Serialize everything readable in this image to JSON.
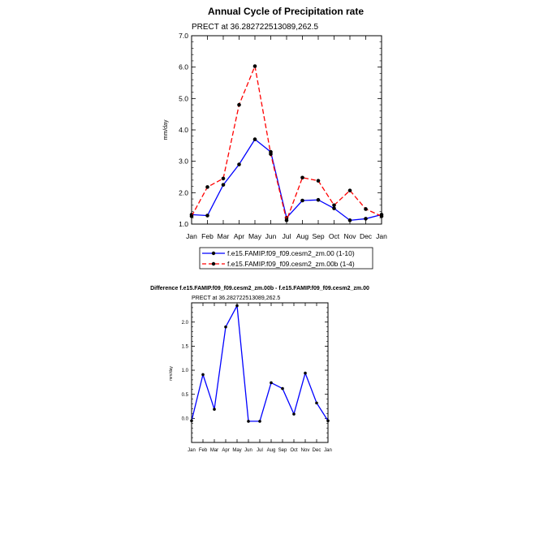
{
  "chart_data": [
    {
      "type": "line",
      "title": "Annual Cycle of Precipitation rate",
      "subtitle": "PRECT at 36.282722513089,262.5",
      "xlabel": "",
      "ylabel": "mm/day",
      "categories": [
        "Jan",
        "Feb",
        "Mar",
        "Apr",
        "May",
        "Jun",
        "Jul",
        "Aug",
        "Sep",
        "Oct",
        "Nov",
        "Dec",
        "Jan"
      ],
      "ylim": [
        1.0,
        7.0
      ],
      "yticks": [
        "1.0",
        "2.0",
        "3.0",
        "4.0",
        "5.0",
        "6.0",
        "7.0"
      ],
      "grid": false,
      "legend_position": "bottom",
      "series": [
        {
          "name": "f.e15.FAMIP.f09_f09.cesm2_zm.00 (1-10)",
          "color": "#0000ff",
          "line_style": "solid",
          "values": [
            1.3,
            1.27,
            2.25,
            2.9,
            3.7,
            3.3,
            1.2,
            1.75,
            1.77,
            1.5,
            1.12,
            1.17,
            1.3
          ]
        },
        {
          "name": "f.e15.FAMIP.f09_f09.cesm2_zm.00b (1-4)",
          "color": "#ff0000",
          "line_style": "dashed",
          "values": [
            1.25,
            2.18,
            2.45,
            4.8,
            6.03,
            3.23,
            1.12,
            2.48,
            2.38,
            1.6,
            2.07,
            1.48,
            1.25
          ]
        }
      ]
    },
    {
      "type": "line",
      "title": "Difference f.e15.FAMIP.f09_f09.cesm2_zm.00b - f.e15.FAMIP.f09_f09.cesm2_zm.00",
      "subtitle": "PRECT at 36.282722513089,262.5",
      "xlabel": "",
      "ylabel": "mm/day",
      "categories": [
        "Jan",
        "Feb",
        "Mar",
        "Apr",
        "May",
        "Jun",
        "Jul",
        "Aug",
        "Sep",
        "Oct",
        "Nov",
        "Dec",
        "Jan"
      ],
      "ylim": [
        -0.5,
        2.4
      ],
      "yticks": [
        "0.0",
        "0.5",
        "1.0",
        "1.5",
        "2.0"
      ],
      "grid": false,
      "series": [
        {
          "color": "#0000ff",
          "line_style": "solid",
          "values": [
            -0.05,
            0.91,
            0.19,
            1.9,
            2.34,
            -0.06,
            -0.06,
            0.74,
            0.62,
            0.09,
            0.94,
            0.32,
            -0.05
          ]
        }
      ]
    }
  ]
}
